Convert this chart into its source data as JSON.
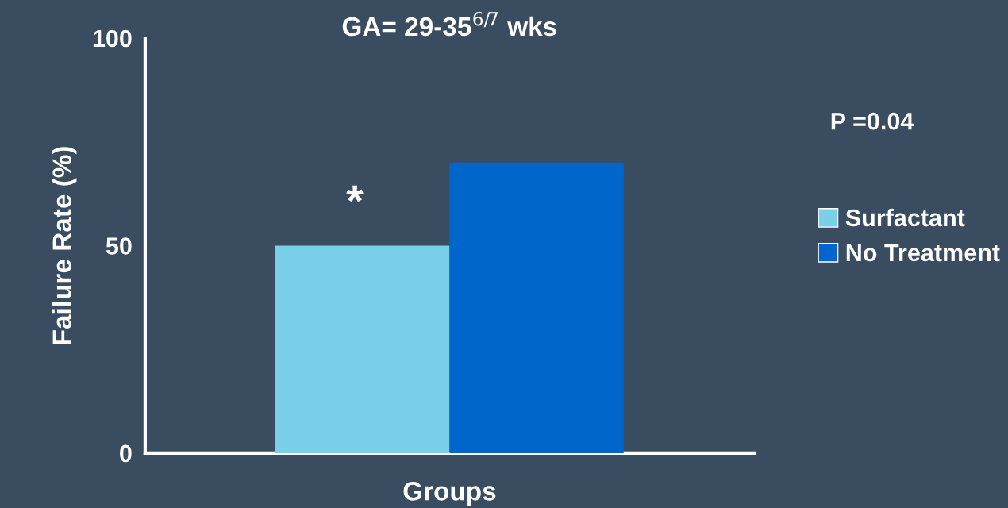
{
  "chart_data": {
    "type": "bar",
    "title": "GA= 29-35$^{6/7}$ wks",
    "xlabel": "Groups",
    "ylabel": "Failure Rate (%)",
    "categories": [
      null
    ],
    "series": [
      {
        "name": "Surfactant",
        "color": "#79d0e8",
        "values": [
          50
        ]
      },
      {
        "name": "No Treatment",
        "color": "#0066cc",
        "values": [
          70
        ]
      }
    ],
    "ylim": [
      0,
      100
    ],
    "yticks": [
      0,
      50,
      100
    ],
    "grid": false,
    "legend": "right",
    "annotations": [
      "*",
      "P =0.04"
    ]
  }
}
